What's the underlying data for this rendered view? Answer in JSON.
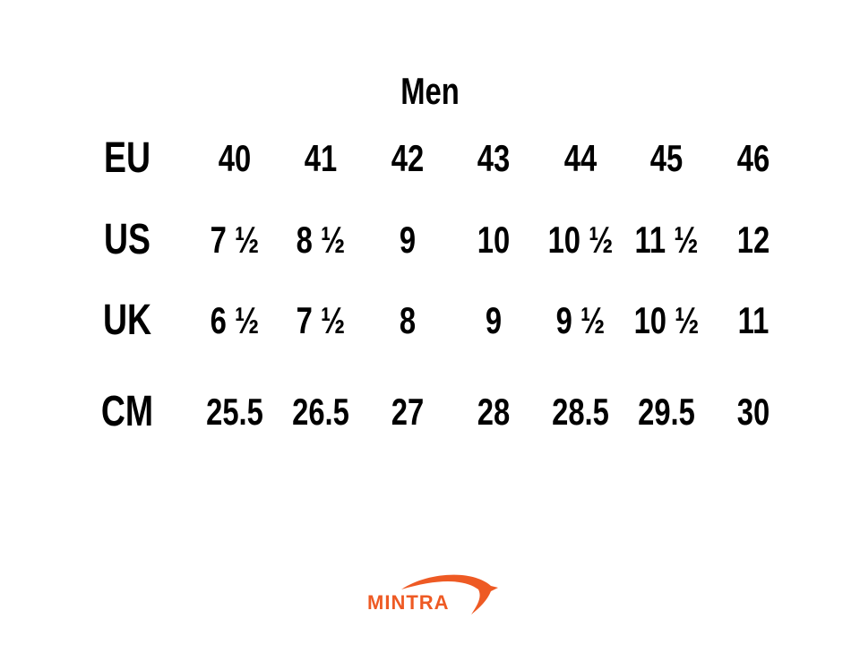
{
  "title": "Men",
  "columns_count": 7,
  "rows": [
    {
      "label": "EU",
      "values": [
        "40",
        "41",
        "42",
        "43",
        "44",
        "45",
        "46"
      ]
    },
    {
      "label": "US",
      "values": [
        "7 ½",
        "8 ½",
        "9",
        "10",
        "10 ½",
        "11 ½",
        "12"
      ]
    },
    {
      "label": "UK",
      "values": [
        "6 ½",
        "7 ½",
        "8",
        "9",
        "9 ½",
        "10 ½",
        "11"
      ]
    },
    {
      "label": "CM",
      "values": [
        "25.5",
        "26.5",
        "27",
        "28",
        "28.5",
        "29.5",
        "30"
      ]
    }
  ],
  "logo": {
    "text": "MINTRA",
    "color": "#ee5a24"
  }
}
